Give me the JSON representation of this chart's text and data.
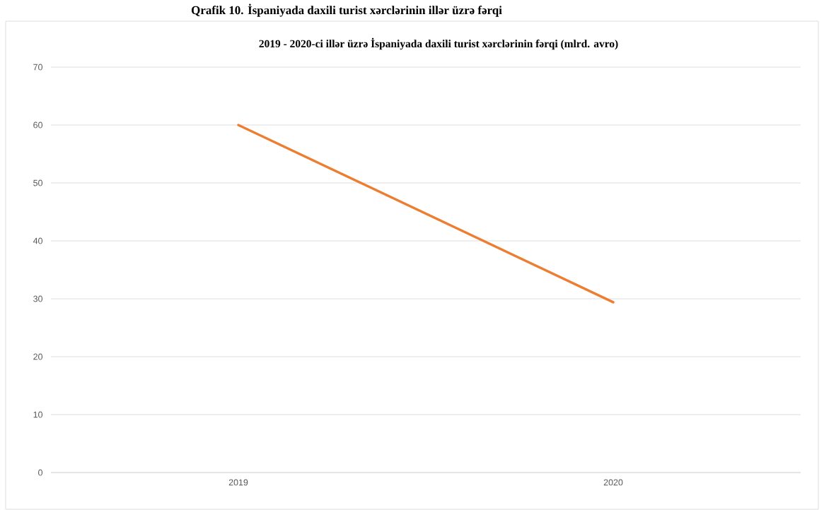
{
  "chart_data": {
    "type": "line",
    "title": "2019 - 2020-ci illər üzrə İspaniyada daxili turist xərclərinin fərqi (mlrd. avro)",
    "annotations": [
      "Qrafik 10. İspaniyada daxili turist xərclərinin illər üzrə fərqi"
    ],
    "categories": [
      "2019",
      "2020"
    ],
    "series": [
      {
        "color": "#ed7d31",
        "values": [
          60,
          29.4
        ]
      }
    ],
    "ylim": [
      0,
      70
    ],
    "yticks": [
      0,
      10,
      20,
      30,
      40,
      50,
      60,
      70
    ],
    "grid": "y",
    "legend": false,
    "marker": "none",
    "line_style": "solid"
  }
}
